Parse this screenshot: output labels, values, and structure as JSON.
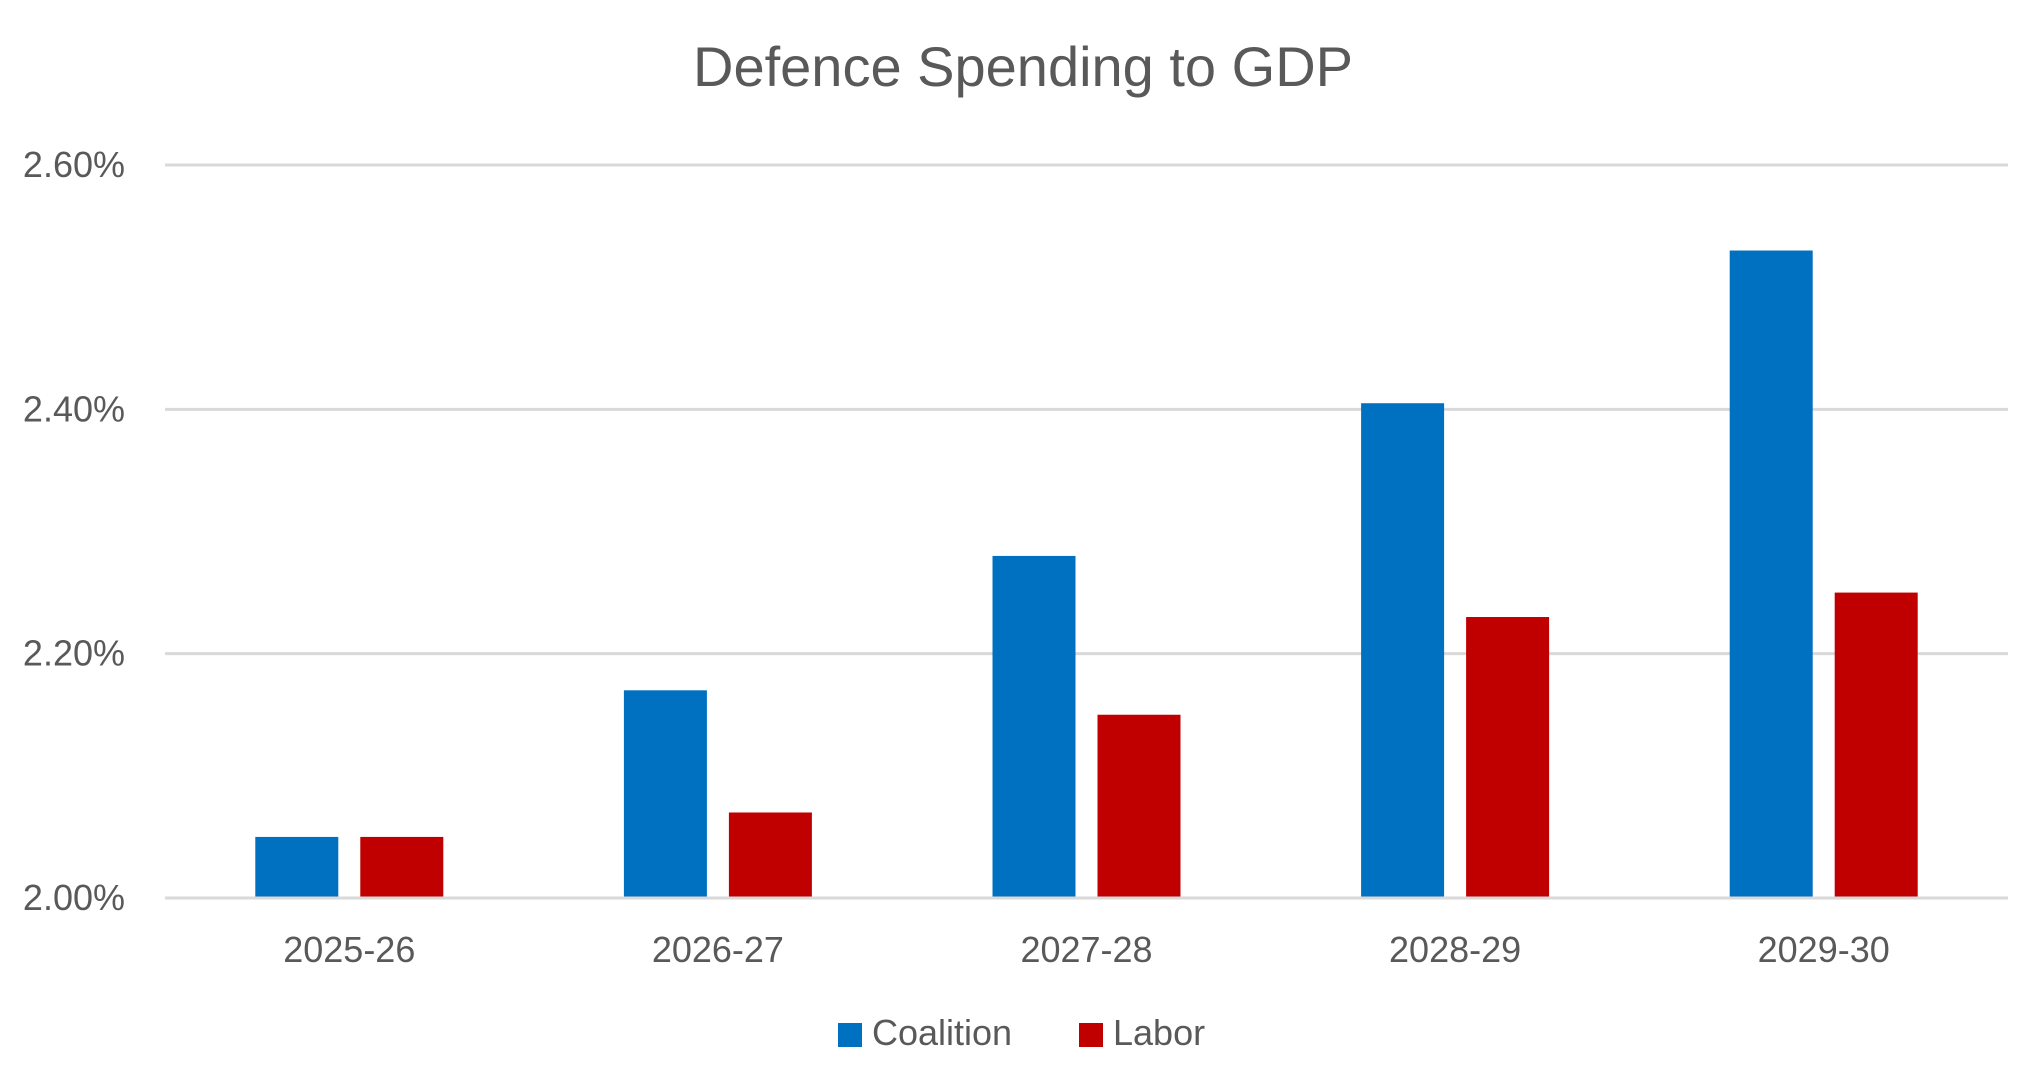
{
  "chart_data": {
    "type": "bar",
    "title": "Defence Spending to GDP",
    "categories": [
      "2025-26",
      "2026-27",
      "2027-28",
      "2028-29",
      "2029-30"
    ],
    "series": [
      {
        "name": "Coalition",
        "color": "#0070C0",
        "values": [
          2.05,
          2.17,
          2.28,
          2.405,
          2.53
        ]
      },
      {
        "name": "Labor",
        "color": "#C00000",
        "values": [
          2.05,
          2.07,
          2.15,
          2.23,
          2.25
        ]
      }
    ],
    "ylim": [
      2.0,
      2.6
    ],
    "yticks": [
      "2.00%",
      "2.20%",
      "2.40%",
      "2.60%"
    ],
    "ytick_values": [
      2.0,
      2.2,
      2.4,
      2.6
    ],
    "grid": true,
    "legend_position": "bottom-center"
  }
}
